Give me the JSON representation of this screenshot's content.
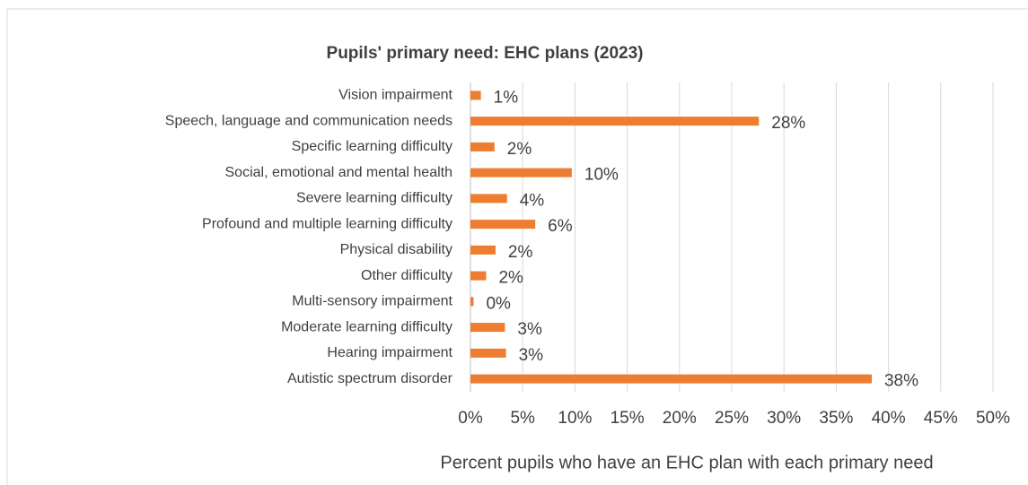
{
  "chart_data": {
    "type": "bar",
    "orientation": "horizontal",
    "title": "Pupils' primary need: EHC plans (2023)",
    "x_label": "Percent pupils who have an EHC plan with each primary need",
    "categories": [
      "Vision impairment",
      "Speech, language and communication needs",
      "Specific learning difficulty",
      "Social, emotional and mental health",
      "Severe learning difficulty",
      "Profound and multiple learning difficulty",
      "Physical disability",
      "Other difficulty",
      "Multi-sensory impairment",
      "Moderate learning difficulty",
      "Hearing impairment",
      "Autistic spectrum disorder"
    ],
    "values": [
      1.0,
      27.6,
      2.3,
      9.7,
      3.5,
      6.2,
      2.4,
      1.5,
      0.3,
      3.3,
      3.4,
      38.4
    ],
    "value_labels": [
      "1%",
      "28%",
      "2%",
      "10%",
      "4%",
      "6%",
      "2%",
      "2%",
      "0%",
      "3%",
      "3%",
      "38%"
    ],
    "color": "#ed7d31",
    "xlim": [
      0,
      50
    ],
    "xticks": [
      {
        "value": 0,
        "label": "0%"
      },
      {
        "value": 5,
        "label": "5%"
      },
      {
        "value": 10,
        "label": "10%"
      },
      {
        "value": 15,
        "label": "15%"
      },
      {
        "value": 20,
        "label": "20%"
      },
      {
        "value": 25,
        "label": "25%"
      },
      {
        "value": 30,
        "label": "30%"
      },
      {
        "value": 35,
        "label": "35%"
      },
      {
        "value": 40,
        "label": "40%"
      },
      {
        "value": 45,
        "label": "45%"
      },
      {
        "value": 50,
        "label": "50%"
      }
    ],
    "grid": true
  }
}
